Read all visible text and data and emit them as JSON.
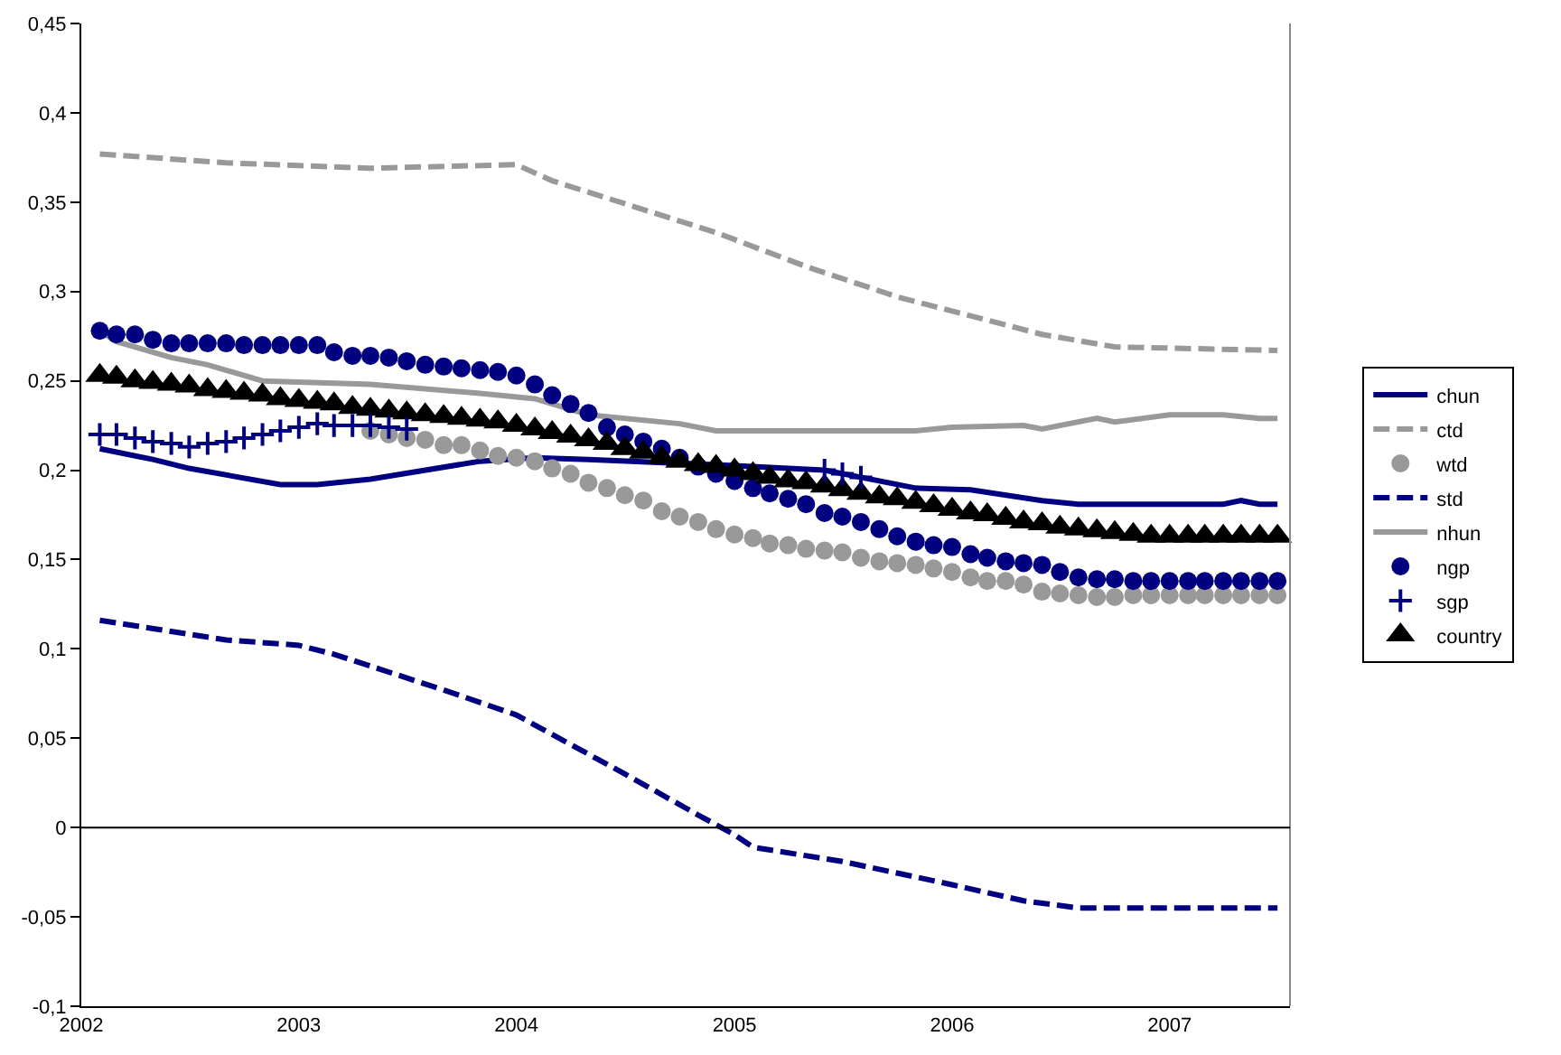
{
  "chart_data": {
    "type": "line",
    "x": [
      "2002-02",
      "2002-03",
      "2002-04",
      "2002-05",
      "2002-06",
      "2002-07",
      "2002-08",
      "2002-09",
      "2002-10",
      "2002-11",
      "2002-12",
      "2003-01",
      "2003-02",
      "2003-03",
      "2003-04",
      "2003-05",
      "2003-06",
      "2003-07",
      "2003-08",
      "2003-09",
      "2003-10",
      "2003-11",
      "2003-12",
      "2004-01",
      "2004-02",
      "2004-03",
      "2004-04",
      "2004-05",
      "2004-06",
      "2004-07",
      "2004-08",
      "2004-09",
      "2004-10",
      "2004-11",
      "2004-12",
      "2005-01",
      "2005-02",
      "2005-03",
      "2005-04",
      "2005-05",
      "2005-06",
      "2005-07",
      "2005-08",
      "2005-09",
      "2005-10",
      "2005-11",
      "2005-12",
      "2006-01",
      "2006-02",
      "2006-03",
      "2006-04",
      "2006-05",
      "2006-06",
      "2006-07",
      "2006-08",
      "2006-09",
      "2006-10",
      "2006-11",
      "2006-12",
      "2007-01",
      "2007-02",
      "2007-03",
      "2007-04",
      "2007-05",
      "2007-06",
      "2007-07"
    ],
    "series": [
      {
        "name": "chun",
        "type": "line",
        "color": "#000080",
        "line_style": "solid",
        "marker": "none",
        "x": [
          "2002-02",
          "2002-05",
          "2002-07",
          "2002-12",
          "2003-02",
          "2003-05",
          "2003-11",
          "2004-02",
          "2004-05",
          "2004-12",
          "2005-06",
          "2005-11",
          "2006-02",
          "2006-06",
          "2006-08",
          "2007-04",
          "2007-05",
          "2007-06",
          "2007-07"
        ],
        "values": [
          0.212,
          0.206,
          0.201,
          0.192,
          0.192,
          0.195,
          0.205,
          0.207,
          0.206,
          0.203,
          0.2,
          0.19,
          0.189,
          0.183,
          0.181,
          0.181,
          0.183,
          0.181,
          0.181
        ]
      },
      {
        "name": "ctd",
        "type": "line",
        "color": "#999999",
        "line_style": "dashed",
        "marker": "none",
        "x": [
          "2002-02",
          "2002-09",
          "2003-05",
          "2004-01",
          "2004-03",
          "2004-12",
          "2005-05",
          "2005-10",
          "2006-06",
          "2006-10",
          "2007-07"
        ],
        "values": [
          0.377,
          0.372,
          0.369,
          0.371,
          0.362,
          0.333,
          0.314,
          0.297,
          0.276,
          0.269,
          0.267
        ]
      },
      {
        "name": "wtd",
        "type": "scatter",
        "color": "#999999",
        "marker": "circle",
        "values": [
          null,
          null,
          null,
          null,
          null,
          null,
          null,
          null,
          null,
          null,
          null,
          null,
          null,
          null,
          null,
          0.222,
          0.22,
          0.218,
          0.217,
          0.214,
          0.214,
          0.211,
          0.208,
          0.207,
          0.205,
          0.201,
          0.198,
          0.193,
          0.19,
          0.186,
          0.183,
          0.177,
          0.174,
          0.171,
          0.167,
          0.164,
          0.162,
          0.159,
          0.158,
          0.156,
          0.155,
          0.154,
          0.151,
          0.149,
          0.148,
          0.147,
          0.145,
          0.143,
          0.14,
          0.138,
          0.138,
          0.136,
          0.132,
          0.131,
          0.13,
          0.129,
          0.129,
          0.13,
          0.13,
          0.13,
          0.13,
          0.13,
          0.13,
          0.13,
          0.13,
          0.13
        ]
      },
      {
        "name": "std",
        "type": "line",
        "color": "#000080",
        "line_style": "dashed",
        "marker": "none",
        "x": [
          "2002-02",
          "2002-09",
          "2003-01",
          "2003-03",
          "2003-09",
          "2004-01",
          "2004-07",
          "2004-11",
          "2005-01",
          "2005-02",
          "2005-07",
          "2006-01",
          "2006-05",
          "2006-08",
          "2007-07"
        ],
        "values": [
          0.116,
          0.105,
          0.102,
          0.097,
          0.077,
          0.063,
          0.03,
          0.007,
          -0.004,
          -0.011,
          -0.019,
          -0.032,
          -0.041,
          -0.045,
          -0.045
        ]
      },
      {
        "name": "nhun",
        "type": "line",
        "color": "#999999",
        "line_style": "solid",
        "marker": "none",
        "x": [
          "2002-02",
          "2002-03",
          "2002-06",
          "2002-08",
          "2002-11",
          "2003-05",
          "2003-11",
          "2004-02",
          "2004-05",
          "2004-10",
          "2004-12",
          "2005-11",
          "2006-01",
          "2006-05",
          "2006-06",
          "2006-09",
          "2006-10",
          "2007-01",
          "2007-04",
          "2007-06",
          "2007-07"
        ],
        "values": [
          0.278,
          0.272,
          0.263,
          0.259,
          0.25,
          0.248,
          0.243,
          0.24,
          0.231,
          0.226,
          0.222,
          0.222,
          0.224,
          0.225,
          0.223,
          0.229,
          0.227,
          0.231,
          0.231,
          0.229,
          0.229
        ]
      },
      {
        "name": "ngp",
        "type": "scatter",
        "color": "#000080",
        "marker": "circle",
        "values": [
          0.278,
          0.276,
          0.276,
          0.273,
          0.271,
          0.271,
          0.271,
          0.271,
          0.27,
          0.27,
          0.27,
          0.27,
          0.27,
          0.266,
          0.264,
          0.264,
          0.263,
          0.261,
          0.259,
          0.258,
          0.257,
          0.256,
          0.255,
          0.253,
          0.248,
          0.242,
          0.237,
          0.232,
          0.224,
          0.22,
          0.216,
          0.212,
          0.207,
          0.202,
          0.198,
          0.194,
          0.19,
          0.187,
          0.184,
          0.181,
          0.176,
          0.174,
          0.171,
          0.167,
          0.163,
          0.16,
          0.158,
          0.157,
          0.153,
          0.151,
          0.149,
          0.148,
          0.147,
          0.143,
          0.14,
          0.139,
          0.139,
          0.138,
          0.138,
          0.138,
          0.138,
          0.138,
          0.138,
          0.138,
          0.138,
          0.138
        ]
      },
      {
        "name": "sgp",
        "type": "scatter",
        "color": "#000080",
        "marker": "cross",
        "values": [
          0.22,
          0.22,
          0.218,
          0.216,
          0.215,
          0.213,
          0.215,
          0.216,
          0.218,
          0.22,
          0.222,
          0.224,
          0.226,
          0.225,
          0.225,
          0.225,
          0.224,
          0.223,
          null,
          null,
          null,
          null,
          null,
          null,
          null,
          null,
          null,
          null,
          null,
          null,
          null,
          null,
          null,
          null,
          null,
          null,
          null,
          null,
          null,
          null,
          0.2,
          0.198,
          0.196,
          null,
          null,
          null,
          null,
          null,
          null,
          null,
          null,
          null,
          null,
          null,
          null,
          null,
          null,
          null,
          null,
          null,
          null,
          null,
          null,
          null,
          null,
          null
        ]
      },
      {
        "name": "country",
        "type": "scatter",
        "color": "#000000",
        "marker": "triangle",
        "values": [
          0.253,
          0.252,
          0.25,
          0.249,
          0.248,
          0.247,
          0.245,
          0.244,
          0.243,
          0.242,
          0.24,
          0.239,
          0.238,
          0.237,
          0.235,
          0.234,
          0.233,
          0.232,
          0.231,
          0.23,
          0.229,
          0.228,
          0.227,
          0.225,
          0.223,
          0.221,
          0.219,
          0.217,
          0.215,
          0.212,
          0.21,
          0.207,
          0.205,
          0.203,
          0.202,
          0.2,
          0.198,
          0.196,
          0.194,
          0.193,
          0.191,
          0.189,
          0.187,
          0.185,
          0.184,
          0.182,
          0.18,
          0.178,
          0.176,
          0.175,
          0.173,
          0.171,
          0.17,
          0.168,
          0.167,
          0.166,
          0.165,
          0.164,
          0.163,
          0.163,
          0.163,
          0.163,
          0.163,
          0.163,
          0.163,
          0.163
        ]
      }
    ],
    "xlim": [
      "2002-01-01",
      "2007-07-22"
    ],
    "xticks": [
      "2002",
      "2003",
      "2004",
      "2005",
      "2006",
      "2007"
    ],
    "ylim": [
      -0.1,
      0.45
    ],
    "yticks": [
      {
        "value": -0.1,
        "label": "-0,1"
      },
      {
        "value": -0.05,
        "label": "-0,05"
      },
      {
        "value": 0,
        "label": "0"
      },
      {
        "value": 0.05,
        "label": "0,05"
      },
      {
        "value": 0.1,
        "label": "0,1"
      },
      {
        "value": 0.15,
        "label": "0,15"
      },
      {
        "value": 0.2,
        "label": "0,2"
      },
      {
        "value": 0.25,
        "label": "0,25"
      },
      {
        "value": 0.3,
        "label": "0,3"
      },
      {
        "value": 0.35,
        "label": "0,35"
      },
      {
        "value": 0.4,
        "label": "0,4"
      },
      {
        "value": 0.45,
        "label": "0,45"
      }
    ],
    "grid": false,
    "ref_lines": [
      {
        "axis": "y",
        "value": 0,
        "color": "#000000"
      }
    ],
    "legend": "right"
  }
}
